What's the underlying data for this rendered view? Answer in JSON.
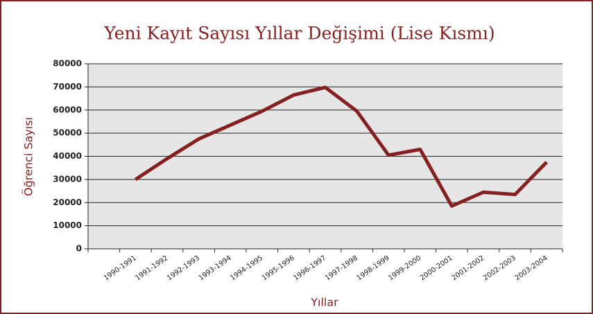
{
  "chart_data": {
    "type": "line",
    "title": "Yeni Kayıt Sayısı Yıllar Değişimi (Lise Kısmı)",
    "x_label": "Yıllar",
    "y_label": "Öğrenci Sayısı",
    "categories": [
      "1990-1991",
      "1991-1992",
      "1992-1993",
      "1993-1994",
      "1994-1995",
      "1995-1996",
      "1996-1997",
      "1997-1998",
      "1998-1999",
      "1999-2000",
      "2000-2001",
      "2001-2002",
      "2002-2003",
      "2003-2004"
    ],
    "series": [
      {
        "name": "Yeni Kayıt",
        "color": "#842020",
        "values": [
          30000,
          39000,
          47500,
          53500,
          59500,
          66500,
          69800,
          59500,
          40500,
          43000,
          18500,
          24500,
          23500,
          37500
        ]
      }
    ],
    "ylim": [
      0,
      80000
    ],
    "yticks": [
      0,
      10000,
      20000,
      30000,
      40000,
      50000,
      60000,
      70000,
      80000
    ],
    "grid": true
  }
}
